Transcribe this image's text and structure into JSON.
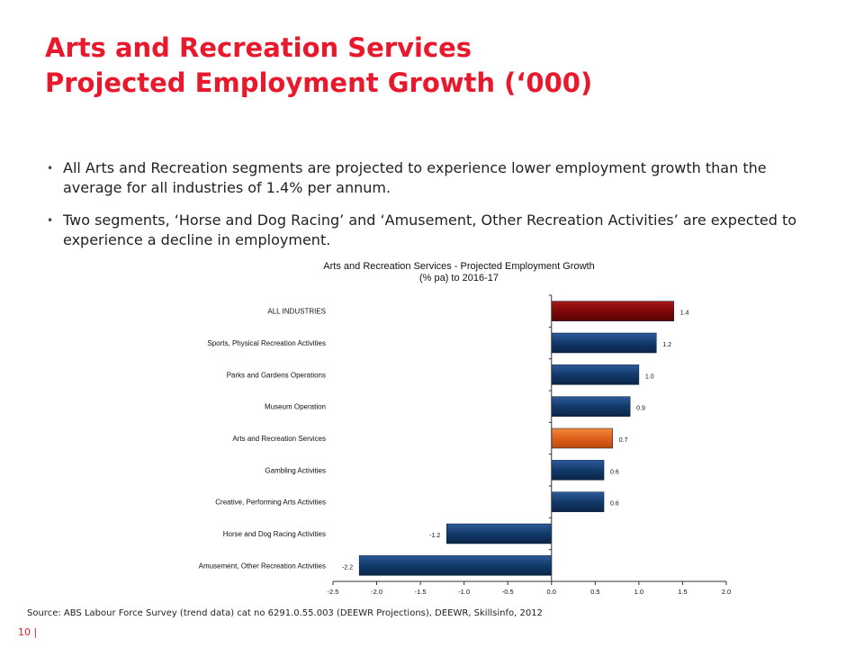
{
  "slide": {
    "title_line1": "Arts and Recreation Services",
    "title_line2": "Projected Employment Growth (‘000)",
    "bullets": [
      "All Arts and Recreation segments are projected to experience lower employment growth than the average for all industries of 1.4% per annum.",
      "Two segments, ‘Horse and Dog Racing’ and ‘Amusement, Other Recreation Activities’ are expected to experience a decline in employment."
    ],
    "bullet_marker": "•",
    "source": "Source: ABS Labour Force Survey (trend data) cat no 6291.0.55.003 (DEEWR Projections), DEEWR, Skillsinfo, 2012",
    "page": "10  |"
  },
  "chart_data": {
    "type": "bar",
    "orientation": "horizontal",
    "title_line1": "Arts and Recreation Services - Projected Employment Growth",
    "title_line2": "(% pa) to 2016-17",
    "categories": [
      "ALL INDUSTRIES",
      "Sports, Physical Recreation Activities",
      "Parks and Gardens Operations",
      "Museum Operation",
      "Arts and Recreation Services",
      "Gambling Activities",
      "Creative, Performing Arts Activities",
      "Horse and Dog Racing Activities",
      "Amusement, Other Recreation Activities"
    ],
    "values": [
      1.4,
      1.2,
      1.0,
      0.9,
      0.7,
      0.6,
      0.6,
      -1.2,
      -2.2
    ],
    "value_labels": [
      "1.4",
      "1.2",
      "1.0",
      "0.9",
      "0.7",
      "0.6",
      "0.6",
      "-1.2",
      "-2.2"
    ],
    "bar_colors": [
      "#8b0a0a",
      "#123a6b",
      "#123a6b",
      "#123a6b",
      "#e0601a",
      "#123a6b",
      "#123a6b",
      "#123a6b",
      "#123a6b"
    ],
    "xlim": [
      -2.5,
      2.0
    ],
    "xticks": [
      "-2.5",
      "-2.0",
      "-1.5",
      "-1.0",
      "-0.5",
      "0.0",
      "0.5",
      "1.0",
      "1.5",
      "2.0"
    ],
    "xtick_values": [
      -2.5,
      -2.0,
      -1.5,
      -1.0,
      -0.5,
      0.0,
      0.5,
      1.0,
      1.5,
      2.0
    ],
    "grid": false,
    "legend": "none"
  }
}
